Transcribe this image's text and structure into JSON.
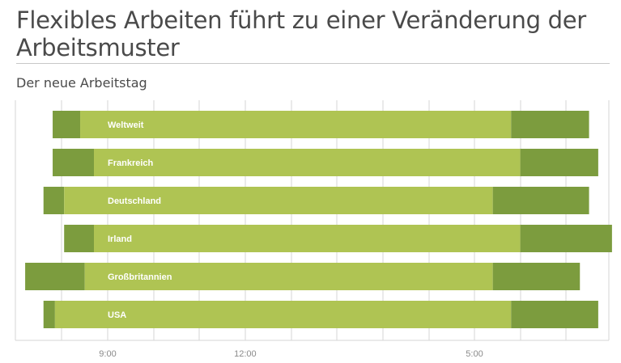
{
  "header": {
    "title": "Flexibles Arbeiten führt zu einer Veränderung der Arbeitsmuster",
    "subtitle": "Der neue Arbeitstag"
  },
  "colors": {
    "core": "#afc453",
    "edge": "#7c9c3e",
    "grid": "#d4d4d4",
    "label": "#ffffff",
    "tick": "#8a8a8a"
  },
  "chart_data": {
    "type": "bar",
    "orientation": "horizontal",
    "title": "Der neue Arbeitstag",
    "xlabel": "",
    "ylabel": "",
    "x_ticks": [
      "9:00",
      "12:00",
      "5:00"
    ],
    "grid": true,
    "categories": [
      "Weltweit",
      "Frankreich",
      "Deutschland",
      "Irland",
      "Großbritannien",
      "USA"
    ],
    "series": [
      {
        "segments": "start_early, core_start, core_end, end_late (hours, 24h clock)",
        "rows": [
          {
            "category": "Weltweit",
            "start": 7.8,
            "core_start": 8.4,
            "core_end": 17.8,
            "end": 19.5
          },
          {
            "category": "Frankreich",
            "start": 7.8,
            "core_start": 8.7,
            "core_end": 18.0,
            "end": 19.7
          },
          {
            "category": "Deutschland",
            "start": 7.6,
            "core_start": 8.05,
            "core_end": 17.4,
            "end": 19.5
          },
          {
            "category": "Irland",
            "start": 8.05,
            "core_start": 8.7,
            "core_end": 18.0,
            "end": 20.0
          },
          {
            "category": "Großbritannien",
            "start": 7.2,
            "core_start": 8.5,
            "core_end": 17.4,
            "end": 19.3
          },
          {
            "category": "USA",
            "start": 7.6,
            "core_start": 7.85,
            "core_end": 17.8,
            "end": 19.7
          }
        ]
      }
    ]
  }
}
